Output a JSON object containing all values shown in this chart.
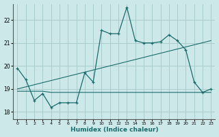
{
  "xlabel": "Humidex (Indice chaleur)",
  "background_color": "#cce8e8",
  "grid_color": "#aacccc",
  "line_color": "#1a6b6b",
  "xlim": [
    -0.5,
    23.5
  ],
  "ylim": [
    17.7,
    22.7
  ],
  "yticks": [
    18,
    19,
    20,
    21,
    22
  ],
  "xticks": [
    0,
    1,
    2,
    3,
    4,
    5,
    6,
    7,
    8,
    9,
    10,
    11,
    12,
    13,
    14,
    15,
    16,
    17,
    18,
    19,
    20,
    21,
    22,
    23
  ],
  "x": [
    0,
    1,
    2,
    3,
    4,
    5,
    6,
    7,
    8,
    9,
    10,
    11,
    12,
    13,
    14,
    15,
    16,
    17,
    18,
    19,
    20,
    21,
    22,
    23
  ],
  "y_main": [
    19.9,
    19.4,
    18.5,
    18.8,
    18.2,
    18.4,
    18.4,
    18.4,
    19.7,
    19.3,
    21.55,
    21.4,
    21.4,
    22.55,
    21.1,
    21.0,
    21.0,
    21.05,
    21.35,
    21.1,
    20.7,
    19.3,
    18.85,
    19.0
  ],
  "y_flat": [
    18.9,
    18.9,
    18.9,
    18.9,
    18.85,
    18.85,
    18.85,
    18.85,
    18.85,
    18.85,
    18.85,
    18.85,
    18.85,
    18.85,
    18.85,
    18.85,
    18.85,
    18.85,
    18.85,
    18.85,
    18.85,
    18.85,
    18.85,
    18.85
  ]
}
